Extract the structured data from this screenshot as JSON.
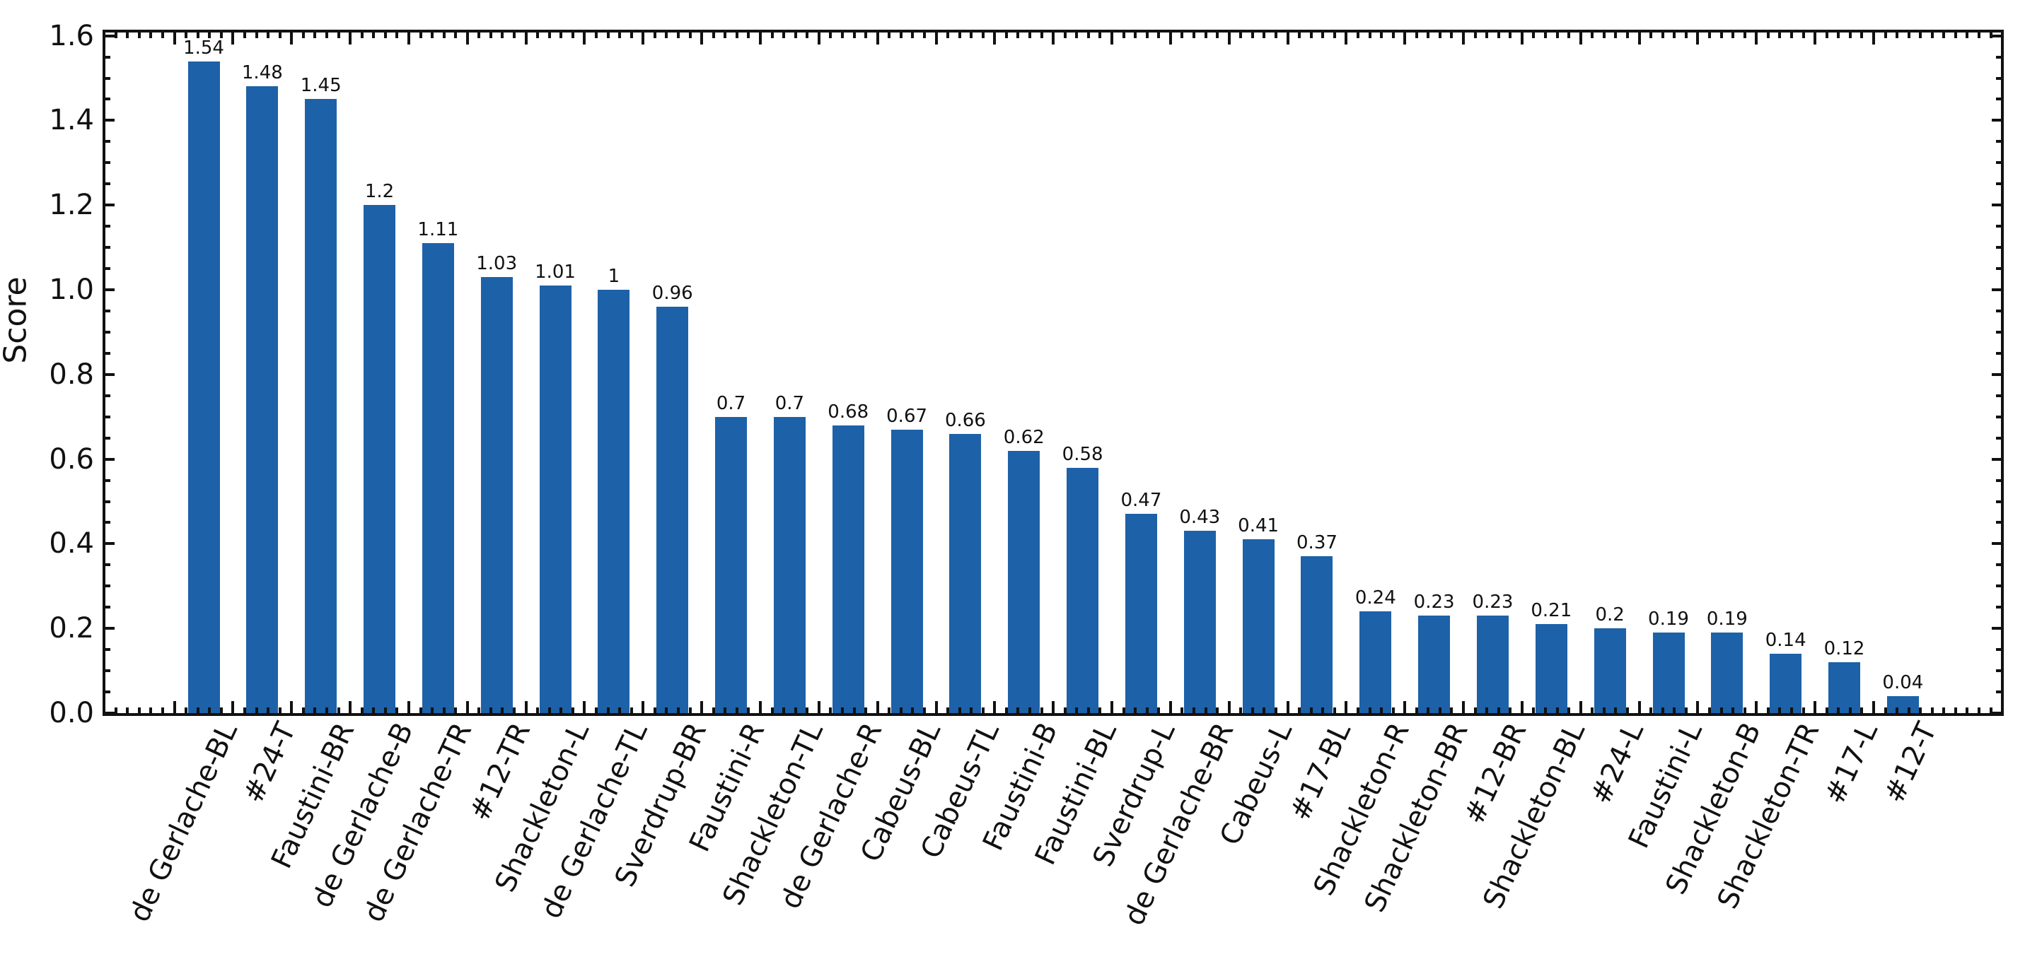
{
  "chart_data": {
    "type": "bar",
    "title": "",
    "xlabel": "",
    "ylabel": "Score",
    "grid": "off",
    "legend": "none",
    "background": "#ffffff",
    "bar_color": "#1d61a8",
    "axis_color": "#111111",
    "ylim": [
      0,
      1.61
    ],
    "ytick_labels": [
      "0.0",
      "0.2",
      "0.4",
      "0.6",
      "0.8",
      "1.0",
      "1.2",
      "1.4",
      "1.6"
    ],
    "ytick_values": [
      0.0,
      0.2,
      0.4,
      0.6,
      0.8,
      1.0,
      1.2,
      1.4,
      1.6
    ],
    "minor_ytick_step": 0.05,
    "xtick_label_rotation_deg": 65,
    "categories": [
      "de Gerlache-BL",
      "#24-T",
      "Faustini-BR",
      "de Gerlache-B",
      "de Gerlache-TR",
      "#12-TR",
      "Shackleton-L",
      "de Gerlache-TL",
      "Sverdrup-BR",
      "Faustini-R",
      "Shackleton-TL",
      "de Gerlache-R",
      "Cabeus-BL",
      "Cabeus-TL",
      "Faustini-B",
      "Faustini-BL",
      "Sverdrup-L",
      "de Gerlache-BR",
      "Cabeus-L",
      "#17-BL",
      "Shackleton-R",
      "Shackleton-BR",
      "#12-BR",
      "Shackleton-BL",
      "#24-L",
      "Faustini-L",
      "Shackleton-B",
      "Shackleton-TR",
      "#17-L",
      "#12-T"
    ],
    "values": [
      1.54,
      1.48,
      1.45,
      1.2,
      1.11,
      1.03,
      1.01,
      1.0,
      0.96,
      0.7,
      0.7,
      0.68,
      0.67,
      0.66,
      0.62,
      0.58,
      0.47,
      0.43,
      0.41,
      0.37,
      0.24,
      0.23,
      0.23,
      0.21,
      0.2,
      0.19,
      0.19,
      0.14,
      0.12,
      0.04
    ],
    "value_labels": [
      "1.54",
      "1.48",
      "1.45",
      "1.2",
      "1.11",
      "1.03",
      "1.01",
      "1",
      "0.96",
      "0.7",
      "0.7",
      "0.68",
      "0.67",
      "0.66",
      "0.62",
      "0.58",
      "0.47",
      "0.43",
      "0.41",
      "0.37",
      "0.24",
      "0.23",
      "0.23",
      "0.21",
      "0.2",
      "0.19",
      "0.19",
      "0.14",
      "0.12",
      "0.04"
    ]
  }
}
